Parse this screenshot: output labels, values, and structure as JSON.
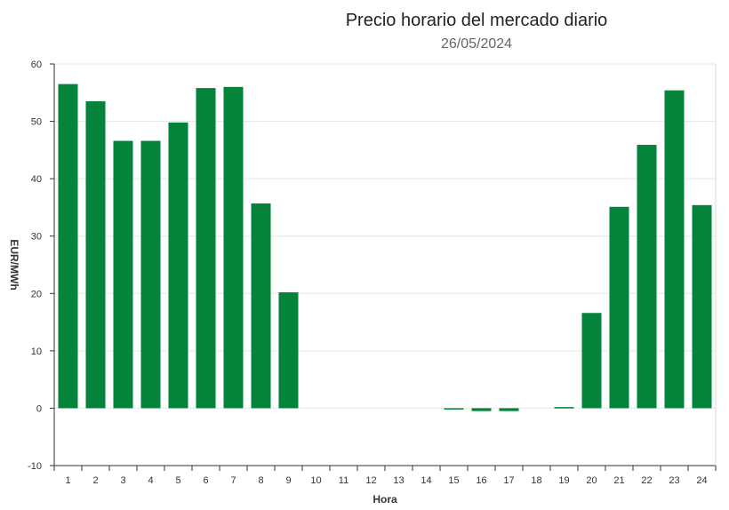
{
  "chart_data": {
    "type": "bar",
    "title": "Precio horario del mercado diario",
    "subtitle": "26/05/2024",
    "xlabel": "Hora",
    "ylabel": "EUR/MWh",
    "ylim": [
      -10,
      60
    ],
    "yticks": [
      -10,
      0,
      10,
      20,
      30,
      40,
      50,
      60
    ],
    "grid": true,
    "bar_color": "#03843a",
    "categories": [
      "1",
      "2",
      "3",
      "4",
      "5",
      "6",
      "7",
      "8",
      "9",
      "10",
      "11",
      "12",
      "13",
      "14",
      "15",
      "16",
      "17",
      "18",
      "19",
      "20",
      "21",
      "22",
      "23",
      "24"
    ],
    "values": [
      56.5,
      53.5,
      46.6,
      46.6,
      49.8,
      55.8,
      56.0,
      35.7,
      20.2,
      0,
      0,
      0,
      0,
      0,
      -0.1,
      -0.5,
      -0.5,
      0,
      0.2,
      16.6,
      35.1,
      45.9,
      55.4,
      35.4
    ]
  }
}
